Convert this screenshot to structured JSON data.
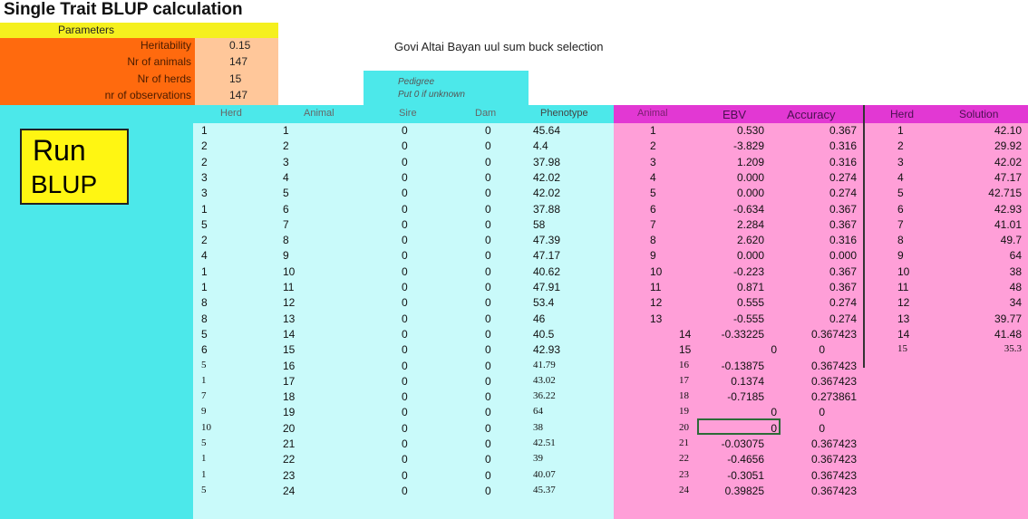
{
  "title": "Single Trait BLUP calculation",
  "parameters": {
    "header": "Parameters",
    "items": [
      {
        "label": "Heritability",
        "value": "0.15"
      },
      {
        "label": "Nr of animals",
        "value": "147"
      },
      {
        "label": "Nr of herds",
        "value": "15"
      },
      {
        "label": "nr of observations",
        "value": "147"
      }
    ]
  },
  "caption": "Govi Altai Bayan uul sum   buck selection",
  "pedigree": {
    "title": "Pedigree",
    "note": "Put 0 if unknown"
  },
  "run_button": {
    "line1": "Run",
    "line2": "BLUP"
  },
  "columns": {
    "herd": "Herd",
    "animal": "Animal",
    "sire": "Sire",
    "dam": "Dam",
    "phenotype": "Phenotype",
    "animal2": "Animal",
    "ebv": "EBV",
    "accuracy": "Accuracy",
    "herd2": "Herd",
    "solution": "Solution"
  },
  "rows": [
    {
      "herd": "1",
      "animal": "1",
      "sire": "0",
      "dam": "0",
      "phenotype": "45.64",
      "animal2": "1",
      "ebv": "0.530",
      "accuracy": "0.367",
      "herd2": "1",
      "solution": "42.10"
    },
    {
      "herd": "2",
      "animal": "2",
      "sire": "0",
      "dam": "0",
      "phenotype": "4.4",
      "animal2": "2",
      "ebv": "-3.829",
      "accuracy": "0.316",
      "herd2": "2",
      "solution": "29.92"
    },
    {
      "herd": "2",
      "animal": "3",
      "sire": "0",
      "dam": "0",
      "phenotype": "37.98",
      "animal2": "3",
      "ebv": "1.209",
      "accuracy": "0.316",
      "herd2": "3",
      "solution": "42.02"
    },
    {
      "herd": "3",
      "animal": "4",
      "sire": "0",
      "dam": "0",
      "phenotype": "42.02",
      "animal2": "4",
      "ebv": "0.000",
      "accuracy": "0.274",
      "herd2": "4",
      "solution": "47.17"
    },
    {
      "herd": "3",
      "animal": "5",
      "sire": "0",
      "dam": "0",
      "phenotype": "42.02",
      "animal2": "5",
      "ebv": "0.000",
      "accuracy": "0.274",
      "herd2": "5",
      "solution": "42.715"
    },
    {
      "herd": "1",
      "animal": "6",
      "sire": "0",
      "dam": "0",
      "phenotype": "37.88",
      "animal2": "6",
      "ebv": "-0.634",
      "accuracy": "0.367",
      "herd2": "6",
      "solution": "42.93"
    },
    {
      "herd": "5",
      "animal": "7",
      "sire": "0",
      "dam": "0",
      "phenotype": "58",
      "animal2": "7",
      "ebv": "2.284",
      "accuracy": "0.367",
      "herd2": "7",
      "solution": "41.01"
    },
    {
      "herd": "2",
      "animal": "8",
      "sire": "0",
      "dam": "0",
      "phenotype": "47.39",
      "animal2": "8",
      "ebv": "2.620",
      "accuracy": "0.316",
      "herd2": "8",
      "solution": "49.7"
    },
    {
      "herd": "4",
      "animal": "9",
      "sire": "0",
      "dam": "0",
      "phenotype": "47.17",
      "animal2": "9",
      "ebv": "0.000",
      "accuracy": "0.000",
      "herd2": "9",
      "solution": "64"
    },
    {
      "herd": "1",
      "animal": "10",
      "sire": "0",
      "dam": "0",
      "phenotype": "40.62",
      "animal2": "10",
      "ebv": "-0.223",
      "accuracy": "0.367",
      "herd2": "10",
      "solution": "38"
    },
    {
      "herd": "1",
      "animal": "11",
      "sire": "0",
      "dam": "0",
      "phenotype": "47.91",
      "animal2": "11",
      "ebv": "0.871",
      "accuracy": "0.367",
      "herd2": "11",
      "solution": "48"
    },
    {
      "herd": "8",
      "animal": "12",
      "sire": "0",
      "dam": "0",
      "phenotype": "53.4",
      "animal2": "12",
      "ebv": "0.555",
      "accuracy": "0.274",
      "herd2": "12",
      "solution": "34"
    },
    {
      "herd": "8",
      "animal": "13",
      "sire": "0",
      "dam": "0",
      "phenotype": "46",
      "animal2": "13",
      "ebv": "-0.555",
      "accuracy": "0.274",
      "herd2": "13",
      "solution": "39.77"
    },
    {
      "herd": "5",
      "animal": "14",
      "sire": "0",
      "dam": "0",
      "phenotype": "40.5",
      "animal2": "14",
      "ebv": "-0.33225",
      "accuracy": "0.367423",
      "herd2": "14",
      "solution": "41.48"
    },
    {
      "herd": "6",
      "animal": "15",
      "sire": "0",
      "dam": "0",
      "phenotype": "42.93",
      "animal2": "15",
      "ebv": "0",
      "accuracy": "0",
      "herd2": "15",
      "solution": "35.3"
    },
    {
      "herd": "5",
      "animal": "16",
      "sire": "0",
      "dam": "0",
      "phenotype": "41.79",
      "animal2": "16",
      "ebv": "-0.13875",
      "accuracy": "0.367423",
      "herd2": "",
      "solution": ""
    },
    {
      "herd": "1",
      "animal": "17",
      "sire": "0",
      "dam": "0",
      "phenotype": "43.02",
      "animal2": "17",
      "ebv": "0.1374",
      "accuracy": "0.367423",
      "herd2": "",
      "solution": ""
    },
    {
      "herd": "7",
      "animal": "18",
      "sire": "0",
      "dam": "0",
      "phenotype": "36.22",
      "animal2": "18",
      "ebv": "-0.7185",
      "accuracy": "0.273861",
      "herd2": "",
      "solution": ""
    },
    {
      "herd": "9",
      "animal": "19",
      "sire": "0",
      "dam": "0",
      "phenotype": "64",
      "animal2": "19",
      "ebv": "0",
      "accuracy": "0",
      "herd2": "",
      "solution": ""
    },
    {
      "herd": "10",
      "animal": "20",
      "sire": "0",
      "dam": "0",
      "phenotype": "38",
      "animal2": "20",
      "ebv": "0",
      "accuracy": "0",
      "herd2": "",
      "solution": ""
    },
    {
      "herd": "5",
      "animal": "21",
      "sire": "0",
      "dam": "0",
      "phenotype": "42.51",
      "animal2": "21",
      "ebv": "-0.03075",
      "accuracy": "0.367423",
      "herd2": "",
      "solution": ""
    },
    {
      "herd": "1",
      "animal": "22",
      "sire": "0",
      "dam": "0",
      "phenotype": "39",
      "animal2": "22",
      "ebv": "-0.4656",
      "accuracy": "0.367423",
      "herd2": "",
      "solution": ""
    },
    {
      "herd": "1",
      "animal": "23",
      "sire": "0",
      "dam": "0",
      "phenotype": "40.07",
      "animal2": "23",
      "ebv": "-0.3051",
      "accuracy": "0.367423",
      "herd2": "",
      "solution": ""
    },
    {
      "herd": "5",
      "animal": "24",
      "sire": "0",
      "dam": "0",
      "phenotype": "45.37",
      "animal2": "24",
      "ebv": "0.39825",
      "accuracy": "0.367423",
      "herd2": "",
      "solution": ""
    }
  ]
}
